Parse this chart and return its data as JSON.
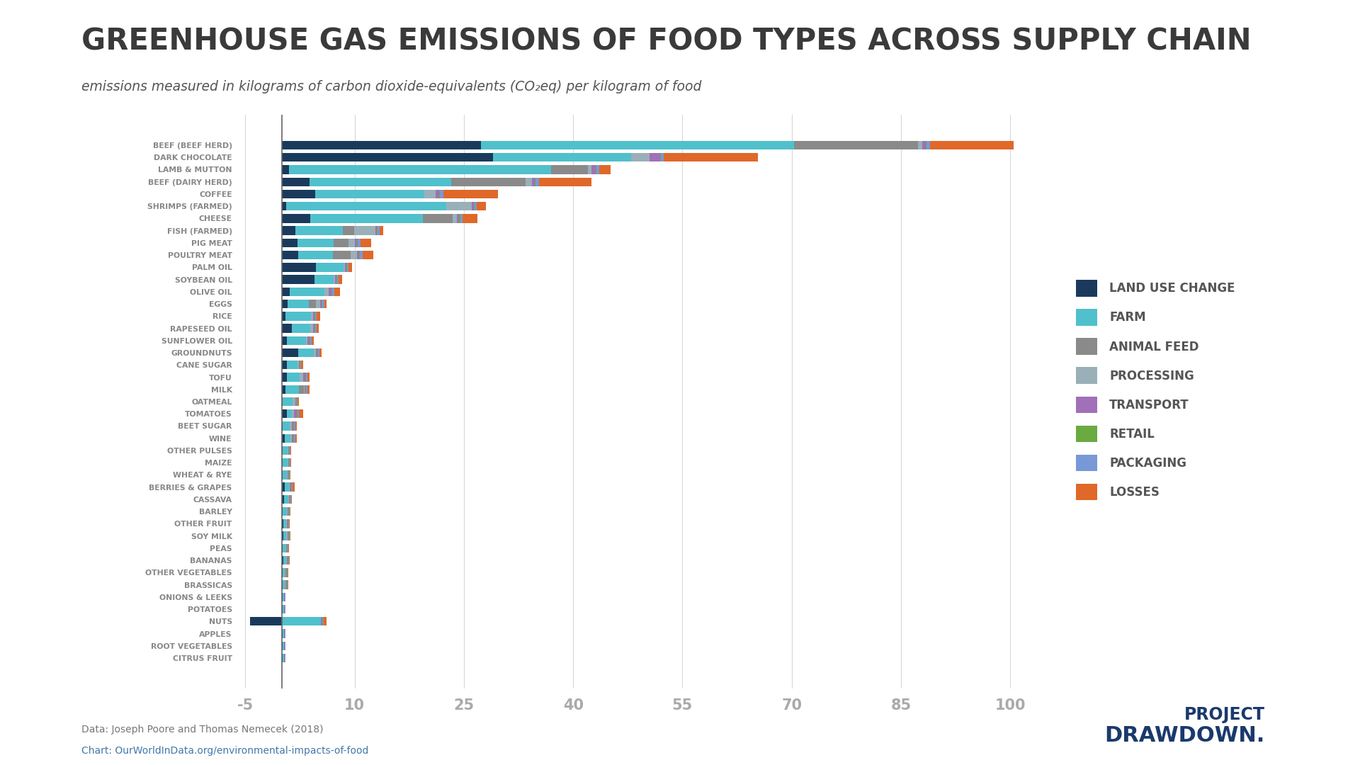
{
  "title": "GREENHOUSE GAS EMISSIONS OF FOOD TYPES ACROSS SUPPLY CHAIN",
  "subtitle": "emissions measured in kilograms of carbon dioxide-equivalents (CO₂eq) per kilogram of food",
  "source_line1": "Data: Joseph Poore and Thomas Nemecek (2018)",
  "source_line2": "OurWorldInData.org/environmental-impacts-of-food",
  "background_color": "#ffffff",
  "title_color": "#3a3a3a",
  "subtitle_color": "#555555",
  "label_color": "#888888",
  "tick_color": "#aaaaaa",
  "legend_text_color": "#555555",
  "categories": [
    "BEEF (BEEF HERD)",
    "DARK CHOCOLATE",
    "LAMB & MUTTON",
    "BEEF (DAIRY HERD)",
    "COFFEE",
    "SHRIMPS (FARMED)",
    "CHEESE",
    "FISH (FARMED)",
    "PIG MEAT",
    "POULTRY MEAT",
    "PALM OIL",
    "SOYBEAN OIL",
    "OLIVE OIL",
    "EGGS",
    "RICE",
    "RAPESEED OIL",
    "SUNFLOWER OIL",
    "GROUNDNUTS",
    "CANE SUGAR",
    "TOFU",
    "MILK",
    "OATMEAL",
    "TOMATOES",
    "BEET SUGAR",
    "WINE",
    "OTHER PULSES",
    "MAIZE",
    "WHEAT & RYE",
    "BERRIES & GRAPES",
    "CASSAVA",
    "BARLEY",
    "OTHER FRUIT",
    "SOY MILK",
    "PEAS",
    "BANANAS",
    "OTHER VEGETABLES",
    "BRASSICAS",
    "ONIONS & LEEKS",
    "POTATOES",
    "NUTS",
    "APPLES",
    "ROOT VEGETABLES",
    "CITRUS FRUIT"
  ],
  "segments": {
    "land_use_change": [
      27.3,
      29.0,
      1.0,
      3.8,
      4.6,
      0.6,
      3.9,
      1.9,
      2.2,
      2.3,
      4.7,
      4.5,
      1.1,
      0.8,
      0.5,
      1.4,
      0.7,
      2.3,
      0.7,
      0.7,
      0.5,
      0.1,
      0.7,
      0.1,
      0.4,
      0.1,
      0.1,
      0.1,
      0.4,
      0.3,
      0.1,
      0.2,
      0.2,
      0.1,
      0.2,
      0.1,
      0.1,
      0.1,
      0.1,
      -4.3,
      0.1,
      0.1,
      0.1
    ],
    "farm": [
      43.0,
      19.0,
      36.0,
      19.5,
      15.0,
      22.0,
      15.5,
      6.5,
      4.9,
      4.7,
      3.8,
      2.6,
      4.8,
      2.9,
      3.5,
      2.5,
      2.6,
      2.1,
      1.5,
      1.8,
      1.9,
      1.4,
      0.7,
      1.0,
      0.8,
      0.7,
      0.7,
      0.6,
      0.6,
      0.6,
      0.6,
      0.4,
      0.4,
      0.4,
      0.4,
      0.3,
      0.3,
      0.2,
      0.2,
      5.4,
      0.2,
      0.2,
      0.2
    ],
    "animal_feed": [
      17.0,
      0.0,
      5.0,
      10.2,
      0.0,
      0.0,
      4.1,
      1.5,
      2.1,
      2.5,
      0.0,
      0.0,
      0.0,
      1.0,
      0.0,
      0.0,
      0.0,
      0.0,
      0.0,
      0.0,
      0.6,
      0.0,
      0.0,
      0.0,
      0.0,
      0.0,
      0.0,
      0.0,
      0.0,
      0.0,
      0.0,
      0.0,
      0.0,
      0.0,
      0.0,
      0.0,
      0.0,
      0.0,
      0.0,
      0.0,
      0.0,
      0.0,
      0.0
    ],
    "processing": [
      0.6,
      2.5,
      0.5,
      0.8,
      1.5,
      3.5,
      0.5,
      3.0,
      0.8,
      0.8,
      0.2,
      0.2,
      0.5,
      0.6,
      0.3,
      0.4,
      0.2,
      0.3,
      0.2,
      0.4,
      0.1,
      0.4,
      0.3,
      0.3,
      0.2,
      0.1,
      0.1,
      0.1,
      0.1,
      0.1,
      0.1,
      0.1,
      0.2,
      0.1,
      0.1,
      0.1,
      0.1,
      0.05,
      0.05,
      0.0,
      0.05,
      0.05,
      0.05
    ],
    "transport": [
      0.5,
      1.4,
      0.6,
      0.4,
      0.5,
      0.3,
      0.3,
      0.2,
      0.3,
      0.3,
      0.15,
      0.2,
      0.4,
      0.2,
      0.2,
      0.2,
      0.3,
      0.2,
      0.1,
      0.3,
      0.1,
      0.1,
      0.4,
      0.2,
      0.2,
      0.1,
      0.1,
      0.1,
      0.2,
      0.1,
      0.1,
      0.1,
      0.1,
      0.1,
      0.1,
      0.1,
      0.1,
      0.05,
      0.05,
      0.2,
      0.05,
      0.05,
      0.05
    ],
    "retail": [
      0.1,
      0.1,
      0.1,
      0.1,
      0.1,
      0.1,
      0.2,
      0.1,
      0.1,
      0.1,
      0.1,
      0.1,
      0.1,
      0.1,
      0.1,
      0.1,
      0.1,
      0.1,
      0.1,
      0.1,
      0.1,
      0.1,
      0.1,
      0.1,
      0.1,
      0.1,
      0.1,
      0.1,
      0.1,
      0.1,
      0.1,
      0.1,
      0.1,
      0.1,
      0.1,
      0.1,
      0.1,
      0.05,
      0.05,
      0.1,
      0.05,
      0.05,
      0.05
    ],
    "packaging": [
      0.5,
      0.4,
      0.4,
      0.5,
      0.5,
      0.3,
      0.3,
      0.2,
      0.4,
      0.4,
      0.2,
      0.2,
      0.3,
      0.3,
      0.2,
      0.2,
      0.2,
      0.2,
      0.1,
      0.2,
      0.2,
      0.1,
      0.2,
      0.2,
      0.2,
      0.1,
      0.1,
      0.1,
      0.1,
      0.1,
      0.1,
      0.1,
      0.1,
      0.1,
      0.1,
      0.1,
      0.1,
      0.05,
      0.05,
      0.1,
      0.05,
      0.05,
      0.05
    ],
    "losses": [
      11.5,
      13.0,
      1.5,
      7.2,
      7.5,
      1.2,
      2.1,
      0.5,
      1.5,
      1.5,
      0.5,
      0.5,
      0.8,
      0.3,
      0.5,
      0.3,
      0.3,
      0.3,
      0.2,
      0.3,
      0.3,
      0.2,
      0.5,
      0.2,
      0.2,
      0.1,
      0.1,
      0.1,
      0.3,
      0.1,
      0.1,
      0.1,
      0.1,
      0.1,
      0.1,
      0.1,
      0.1,
      0.05,
      0.05,
      0.4,
      0.05,
      0.05,
      0.05
    ]
  },
  "colors": {
    "land_use_change": "#1a3a5c",
    "farm": "#50c0cc",
    "animal_feed": "#8a8a8a",
    "processing": "#9ab0b8",
    "transport": "#a070b8",
    "retail": "#6aaa40",
    "packaging": "#7898d8",
    "losses": "#e06828"
  },
  "legend_labels": {
    "land_use_change": "LAND USE CHANGE",
    "farm": "FARM",
    "animal_feed": "ANIMAL FEED",
    "processing": "PROCESSING",
    "transport": "TRANSPORT",
    "retail": "RETAIL",
    "packaging": "PACKAGING",
    "losses": "LOSSES"
  },
  "xlim": [
    -6,
    106
  ],
  "xticks": [
    -5,
    10,
    25,
    40,
    55,
    70,
    85,
    100
  ],
  "project_drawdown_color": "#1a3a6c"
}
